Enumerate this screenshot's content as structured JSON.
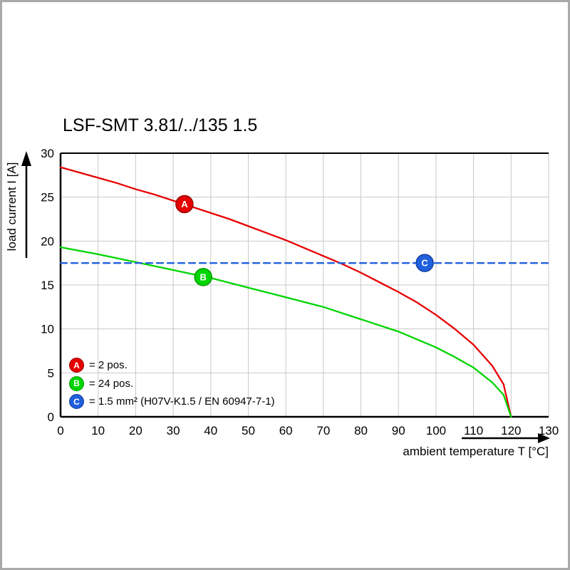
{
  "frame": {
    "border_color": "#a9a9a9"
  },
  "chart_data": {
    "type": "line",
    "title": "LSF-SMT 3.81/../135 1.5",
    "xlabel": "ambient temperature T [°C]",
    "ylabel": "load current I [A]",
    "xlim": [
      0,
      130
    ],
    "ylim": [
      0,
      30
    ],
    "xticks": [
      0,
      10,
      20,
      30,
      40,
      50,
      60,
      70,
      80,
      90,
      100,
      110,
      120,
      130
    ],
    "yticks": [
      0,
      5,
      10,
      15,
      20,
      25,
      30
    ],
    "grid": true,
    "legend_position": "bottom-left-inside",
    "series": [
      {
        "id": "A",
        "legend_label": "= 2 pos.",
        "color": "#e60000",
        "marker_stroke": "#990000",
        "line_style": "solid",
        "marker_at": [
          33,
          24.2
        ],
        "points": [
          [
            0,
            28.4
          ],
          [
            5,
            27.8
          ],
          [
            10,
            27.2
          ],
          [
            15,
            26.6
          ],
          [
            20,
            25.9
          ],
          [
            25,
            25.3
          ],
          [
            30,
            24.6
          ],
          [
            35,
            23.9
          ],
          [
            40,
            23.2
          ],
          [
            45,
            22.5
          ],
          [
            50,
            21.7
          ],
          [
            55,
            20.9
          ],
          [
            60,
            20.1
          ],
          [
            65,
            19.2
          ],
          [
            70,
            18.3
          ],
          [
            75,
            17.4
          ],
          [
            80,
            16.4
          ],
          [
            85,
            15.3
          ],
          [
            90,
            14.2
          ],
          [
            95,
            13.0
          ],
          [
            100,
            11.6
          ],
          [
            105,
            10.0
          ],
          [
            110,
            8.2
          ],
          [
            115,
            5.8
          ],
          [
            118,
            3.7
          ],
          [
            120,
            0
          ]
        ]
      },
      {
        "id": "B",
        "legend_label": "= 24 pos.",
        "color": "#00d500",
        "marker_stroke": "#009900",
        "line_style": "solid",
        "marker_at": [
          38,
          15.9
        ],
        "points": [
          [
            0,
            19.3
          ],
          [
            10,
            18.5
          ],
          [
            20,
            17.6
          ],
          [
            30,
            16.7
          ],
          [
            40,
            15.8
          ],
          [
            50,
            14.7
          ],
          [
            60,
            13.6
          ],
          [
            70,
            12.5
          ],
          [
            80,
            11.1
          ],
          [
            90,
            9.7
          ],
          [
            100,
            7.9
          ],
          [
            105,
            6.8
          ],
          [
            110,
            5.6
          ],
          [
            115,
            3.9
          ],
          [
            118,
            2.5
          ],
          [
            120,
            0
          ]
        ]
      },
      {
        "id": "C",
        "legend_label": "= 1.5 mm² (H07V-K1.5 / EN 60947-7-1)",
        "color": "#2060dd",
        "marker_stroke": "#153fa0",
        "line_style": "dashed",
        "marker_at": [
          97,
          17.5
        ],
        "points": [
          [
            0,
            17.5
          ],
          [
            130,
            17.5
          ]
        ]
      }
    ]
  }
}
